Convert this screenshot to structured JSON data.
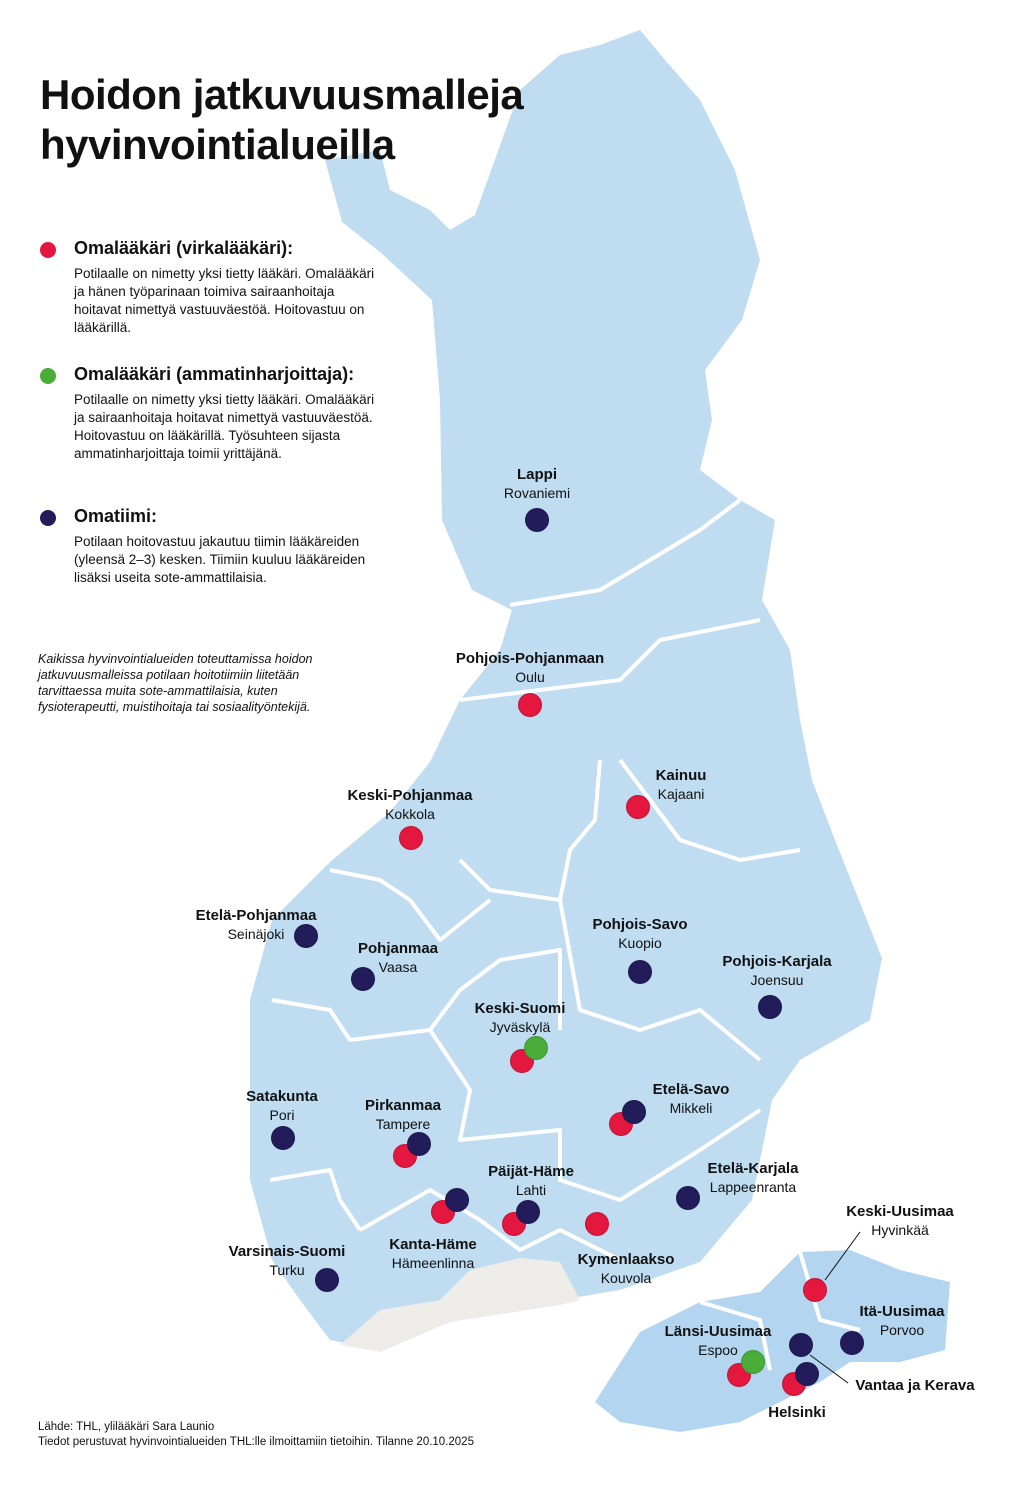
{
  "title": "Hoidon jatkuvuusmalleja hyvinvointialueilla",
  "colors": {
    "virkalaakari": "#e4173e",
    "ammatinharjoittaja": "#4aad3a",
    "omatiimi": "#221c5a",
    "land": "#bfdcf1",
    "excluded": "#eeece8"
  },
  "legend": [
    {
      "key": "virkalaakari",
      "title": "Omalääkäri (virkalääkäri):",
      "text": "Potilaalle on nimetty yksi tietty lääkäri. Omalääkäri ja hänen työparinaan toimiva sairaanhoitaja hoitavat nimettyä vastuuväestöä. Hoitovastuu on lääkärillä."
    },
    {
      "key": "ammatinharjoittaja",
      "title": "Omalääkäri (ammatinharjoittaja):",
      "text": "Potilaalle on nimetty yksi tietty lääkäri. Omalääkäri ja sairaanhoitaja hoitavat nimettyä vastuuväestöä. Hoitovastuu on lääkärillä. Työsuhteen sijasta ammatinharjoittaja toimii yrittäjänä."
    },
    {
      "key": "omatiimi",
      "title": "Omatiimi:",
      "text": "Potilaan hoitovastuu jakautuu tiimin lääkäreiden (yleensä 2–3) kesken. Tiimiin kuuluu lääkäreiden lisäksi useita sote-ammattilaisia."
    }
  ],
  "note": "Kaikissa hyvinvointialueiden toteuttamissa hoidon jatkuvuusmalleissa potilaan hoitotiimiin liitetään tarvittaessa muita sote-ammattilaisia, kuten fysioterapeutti, muistihoitaja tai sosiaalityöntekijä.",
  "regions": [
    {
      "name": "Lappi",
      "city": "Rovaniemi",
      "models": [
        "omatiimi"
      ]
    },
    {
      "name": "Pohjois-Pohjanmaan",
      "city": "Oulu",
      "models": [
        "virkalaakari"
      ]
    },
    {
      "name": "Kainuu",
      "city": "Kajaani",
      "models": [
        "virkalaakari"
      ]
    },
    {
      "name": "Keski-Pohjanmaa",
      "city": "Kokkola",
      "models": [
        "virkalaakari"
      ]
    },
    {
      "name": "Etelä-Pohjanmaa",
      "city": "Seinäjoki",
      "models": [
        "omatiimi"
      ]
    },
    {
      "name": "Pohjanmaa",
      "city": "Vaasa",
      "models": [
        "omatiimi"
      ]
    },
    {
      "name": "Pohjois-Savo",
      "city": "Kuopio",
      "models": [
        "omatiimi"
      ]
    },
    {
      "name": "Pohjois-Karjala",
      "city": "Joensuu",
      "models": [
        "omatiimi"
      ]
    },
    {
      "name": "Keski-Suomi",
      "city": "Jyväskylä",
      "models": [
        "virkalaakari",
        "ammatinharjoittaja"
      ]
    },
    {
      "name": "Satakunta",
      "city": "Pori",
      "models": [
        "omatiimi"
      ]
    },
    {
      "name": "Pirkanmaa",
      "city": "Tampere",
      "models": [
        "virkalaakari",
        "omatiimi"
      ]
    },
    {
      "name": "Etelä-Savo",
      "city": "Mikkeli",
      "models": [
        "virkalaakari",
        "omatiimi"
      ]
    },
    {
      "name": "Päijät-Häme",
      "city": "Lahti",
      "models": [
        "virkalaakari",
        "omatiimi"
      ]
    },
    {
      "name": "Etelä-Karjala",
      "city": "Lappeenranta",
      "models": [
        "omatiimi"
      ]
    },
    {
      "name": "Kanta-Häme",
      "city": "Hämeenlinna",
      "models": [
        "virkalaakari",
        "omatiimi"
      ]
    },
    {
      "name": "Kymenlaakso",
      "city": "Kouvola",
      "models": [
        "virkalaakari"
      ]
    },
    {
      "name": "Varsinais-Suomi",
      "city": "Turku",
      "models": [
        "omatiimi"
      ]
    },
    {
      "name": "Keski-Uusimaa",
      "city": "Hyvinkää",
      "models": [
        "virkalaakari"
      ]
    },
    {
      "name": "Itä-Uusimaa",
      "city": "Porvoo",
      "models": [
        "omatiimi"
      ]
    },
    {
      "name": "Länsi-Uusimaa",
      "city": "Espoo",
      "models": [
        "virkalaakari",
        "ammatinharjoittaja"
      ]
    },
    {
      "name": "Vantaa ja Kerava",
      "city": "",
      "models": [
        "omatiimi"
      ]
    },
    {
      "name": "Helsinki",
      "city": "",
      "models": [
        "virkalaakari",
        "omatiimi"
      ]
    }
  ],
  "footer": {
    "source": "Lähde: THL, ylilääkäri Sara Launio",
    "info": "Tiedot perustuvat hyvinvointialueiden THL:lle ilmoittamiin tietoihin. Tilanne 20.10.2025"
  }
}
